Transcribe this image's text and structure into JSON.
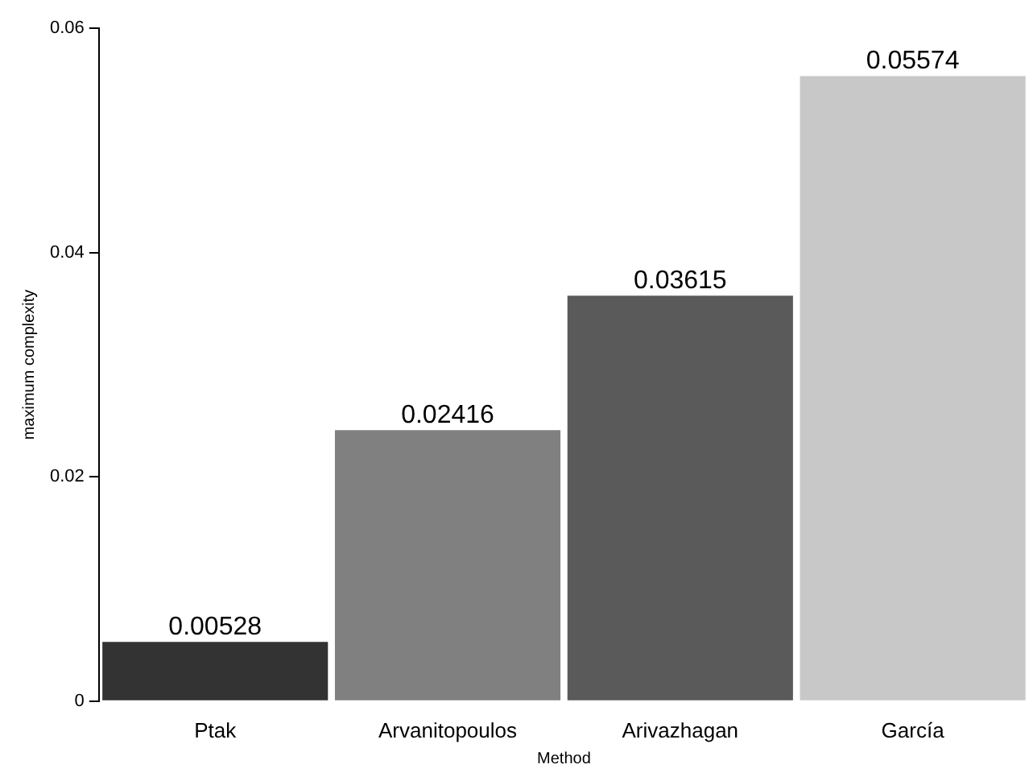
{
  "chart_data": {
    "type": "bar",
    "xlabel": "Method",
    "ylabel": "maximum complexity",
    "categories": [
      "Ptak",
      "Arvanitopoulos",
      "Arivazhagan",
      "García"
    ],
    "values": [
      0.00528,
      0.02416,
      0.03615,
      0.05574
    ],
    "colors": [
      "#333333",
      "#808080",
      "#5a5a5a",
      "#c8c8c8"
    ],
    "ylim": [
      0,
      0.06
    ],
    "yticks": [
      0,
      0.02,
      0.04,
      0.06
    ],
    "grid": false,
    "legend": false,
    "data_labels": true
  }
}
